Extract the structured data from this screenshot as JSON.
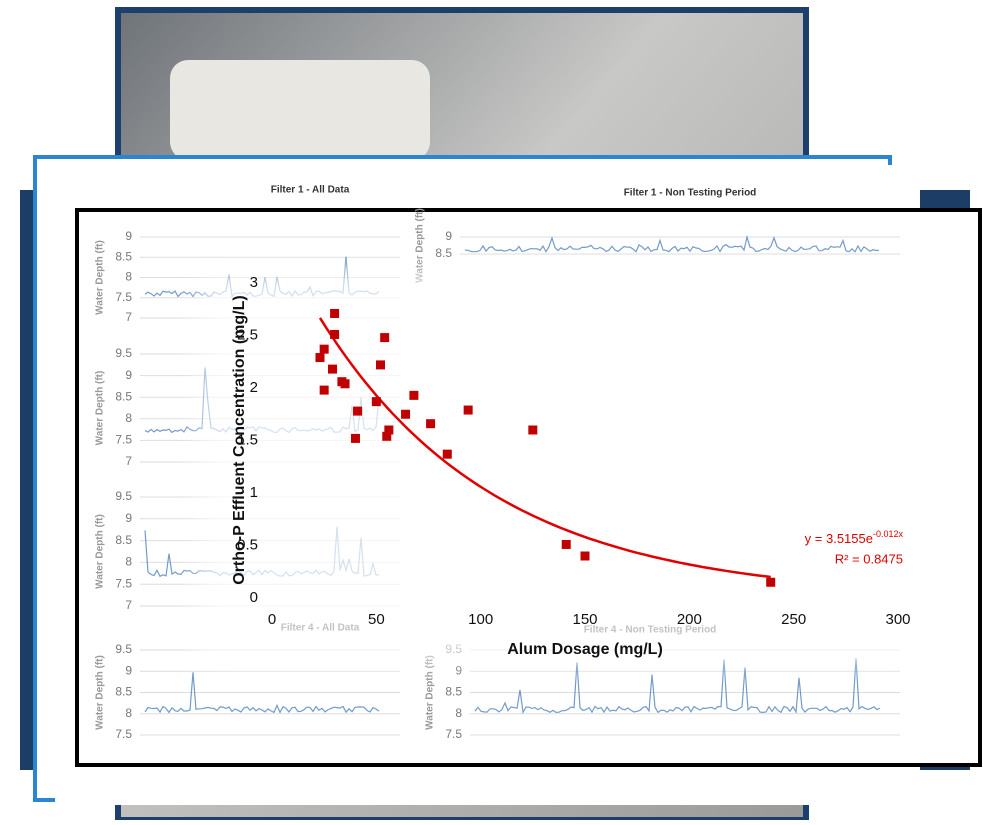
{
  "chart_data": {
    "type": "scatter",
    "x_label": "Alum Dosage (mg/L)",
    "y_label": "Ortho-P Effluent Concentration (mg/L)",
    "x": [
      30,
      30,
      25,
      23,
      29,
      25,
      33.5,
      35,
      54,
      52,
      50,
      41,
      40,
      56,
      55,
      68,
      64,
      76,
      84,
      94,
      125,
      141,
      150,
      239
    ],
    "values": [
      2.71,
      2.51,
      2.37,
      2.29,
      2.18,
      1.98,
      2.06,
      2.04,
      2.48,
      2.22,
      1.87,
      1.78,
      1.52,
      1.6,
      1.54,
      1.93,
      1.75,
      1.66,
      1.37,
      1.79,
      1.6,
      0.51,
      0.4,
      0.15
    ],
    "color": "#c00000",
    "xlim": [
      0,
      300
    ],
    "xticks": [
      0,
      50,
      100,
      150,
      200,
      250,
      300
    ],
    "ylim": [
      0,
      3
    ],
    "yticks": [
      0,
      0.5,
      1,
      1.5,
      2,
      2.5,
      3
    ],
    "trendline": {
      "color": "#e00000",
      "a": 3.5155,
      "b": -0.012,
      "equation": "y = 3.5155e",
      "exponent": "-0.012x",
      "r_squared_label": "R² = 0.8475"
    }
  },
  "background_panels": [
    {
      "title": "Filter 1 - All Data",
      "y_label": "Water Depth (ft)",
      "yticks": [
        9,
        8.5,
        8,
        7.5,
        7
      ]
    },
    {
      "y_label": "Water Depth (ft)",
      "yticks": [
        9.5,
        9,
        8.5,
        8,
        7.5,
        7
      ]
    },
    {
      "y_label": "Water Depth (ft)",
      "yticks": [
        9.5,
        9,
        8.5,
        8,
        7.5,
        7
      ]
    },
    {
      "title": "Filter 4 - All Data",
      "y_label": "Water Depth (ft)",
      "yticks": [
        9.5,
        9,
        8.5,
        8,
        7.5
      ]
    },
    {
      "title": "Filter 1 - Non Testing Period",
      "y_label": "Water Depth (ft)",
      "yticks": [
        9,
        8.5
      ]
    },
    {
      "title": "Filter 4 - Non Testing Period",
      "y_label": "Water Depth (ft)",
      "yticks": [
        9.5,
        9,
        8.5,
        8,
        7.5
      ]
    }
  ]
}
